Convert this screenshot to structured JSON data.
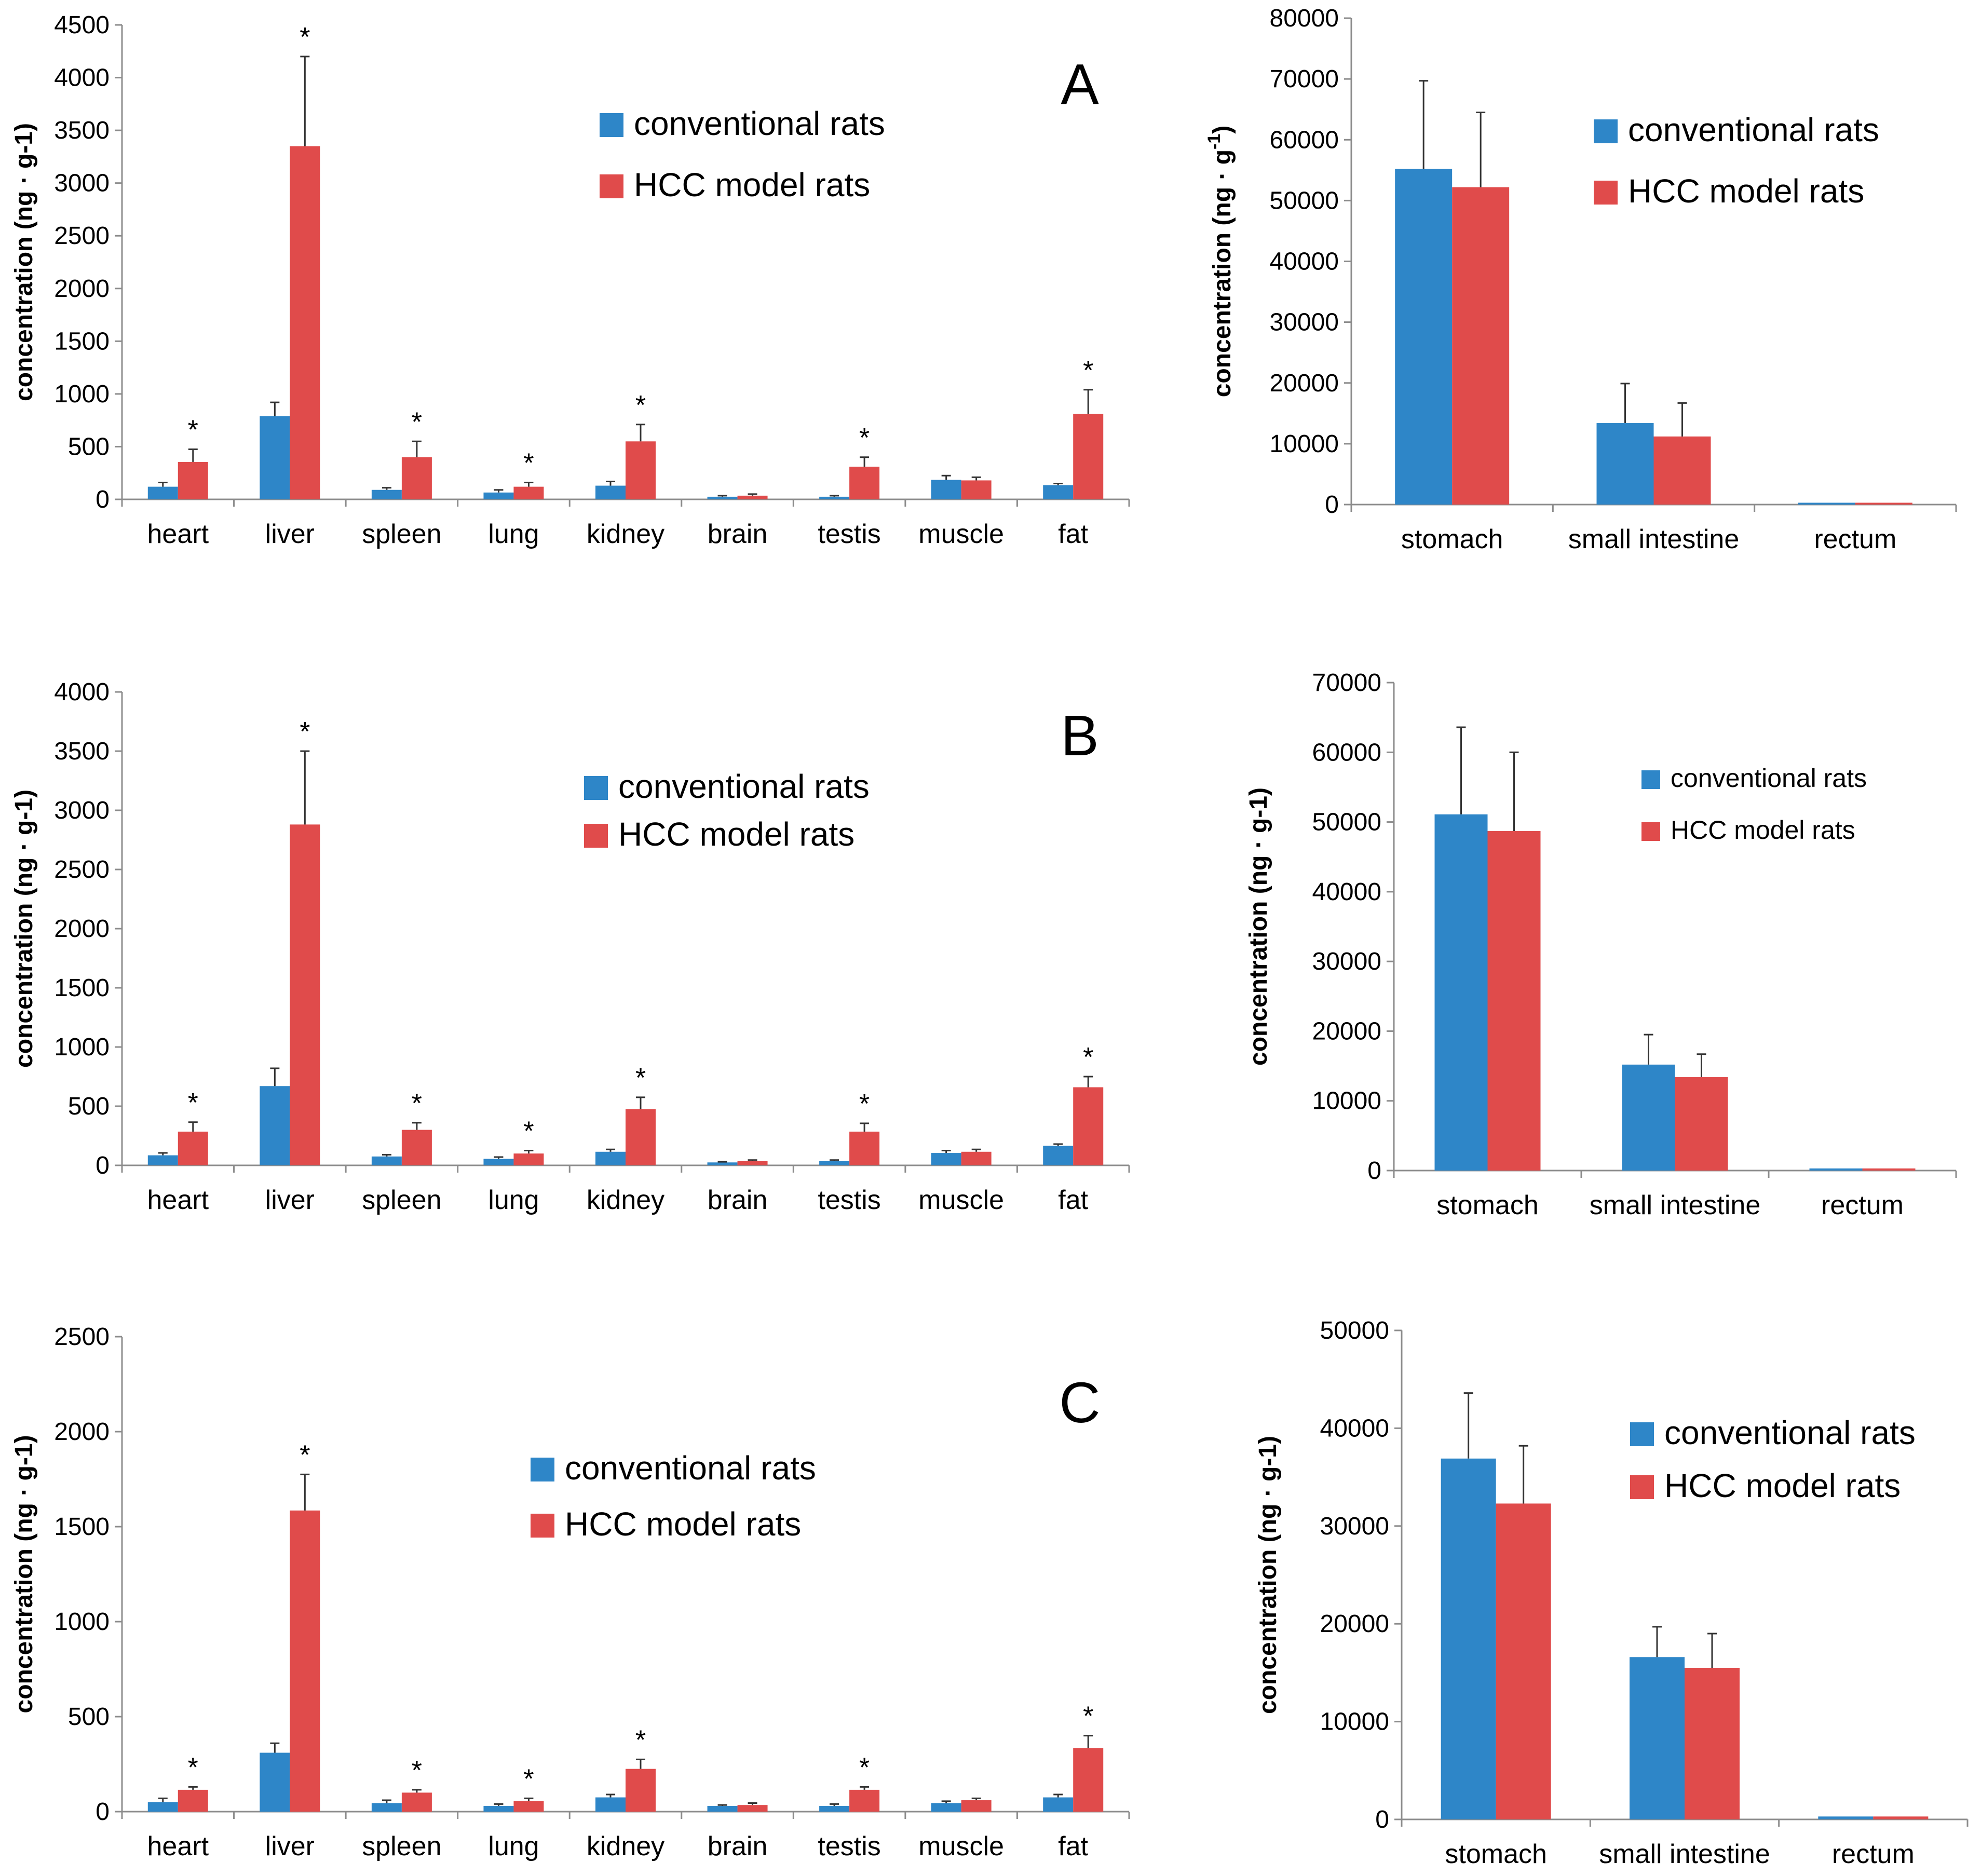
{
  "colors": {
    "conventional": "#2E86C8",
    "hcc": "#E04B4B",
    "axis": "#8c8c8c"
  },
  "ylabel": "concentration (ng · g-1)",
  "ylabel_gi_first": "concentration (ng · g",
  "ylabel_gi_first_sup": "-1",
  "ylabel_gi_first_tail": ")",
  "chart_data": [
    {
      "id": "A-organs",
      "type": "bar",
      "panel": "A",
      "categories": [
        "heart",
        "liver",
        "spleen",
        "lung",
        "kidney",
        "brain",
        "testis",
        "muscle",
        "fat"
      ],
      "series": [
        {
          "name": "conventional rats",
          "values": [
            120,
            790,
            90,
            65,
            130,
            25,
            25,
            185,
            135
          ],
          "errors": [
            40,
            130,
            20,
            25,
            40,
            10,
            10,
            40,
            15
          ]
        },
        {
          "name": "HCC model rats",
          "values": [
            355,
            3350,
            400,
            120,
            550,
            35,
            310,
            180,
            810
          ],
          "errors": [
            120,
            850,
            150,
            40,
            160,
            15,
            90,
            30,
            230
          ]
        }
      ],
      "significant": [
        true,
        true,
        true,
        true,
        true,
        false,
        true,
        false,
        true
      ],
      "ylim": [
        0,
        4500
      ],
      "yticks": [
        "0",
        "500",
        "1000",
        "1500",
        "2000",
        "2500",
        "3000",
        "3500",
        "4000",
        "4500"
      ],
      "ylabel": "concentration (ng · g-1)",
      "legend": [
        "conventional rats",
        "HCC model rats"
      ]
    },
    {
      "id": "A-gi",
      "type": "bar",
      "panel": "A",
      "categories": [
        "stomach",
        "small intestine",
        "rectum"
      ],
      "series": [
        {
          "name": "conventional rats",
          "values": [
            55200,
            13400,
            300
          ],
          "errors": [
            14500,
            6500,
            0
          ]
        },
        {
          "name": "HCC model rats",
          "values": [
            52200,
            11200,
            300
          ],
          "errors": [
            12300,
            5500,
            0
          ]
        }
      ],
      "ylim": [
        0,
        80000
      ],
      "yticks": [
        "0",
        "10000",
        "20000",
        "30000",
        "40000",
        "50000",
        "60000",
        "70000",
        "80000"
      ],
      "ylabel": "concentration (ng · g-1)",
      "legend": [
        "conventional rats",
        "HCC model rats"
      ]
    },
    {
      "id": "B-organs",
      "type": "bar",
      "panel": "B",
      "categories": [
        "heart",
        "liver",
        "spleen",
        "lung",
        "kidney",
        "brain",
        "testis",
        "muscle",
        "fat"
      ],
      "series": [
        {
          "name": "conventional rats",
          "values": [
            85,
            670,
            75,
            55,
            115,
            25,
            35,
            105,
            165
          ],
          "errors": [
            20,
            150,
            15,
            15,
            20,
            5,
            10,
            20,
            15
          ]
        },
        {
          "name": "HCC model rats",
          "values": [
            285,
            2880,
            300,
            100,
            475,
            35,
            285,
            115,
            660
          ],
          "errors": [
            80,
            620,
            60,
            25,
            100,
            10,
            70,
            20,
            90
          ]
        }
      ],
      "significant": [
        true,
        true,
        true,
        true,
        true,
        false,
        true,
        false,
        true
      ],
      "ylim": [
        0,
        4000
      ],
      "yticks": [
        "0",
        "500",
        "1000",
        "1500",
        "2000",
        "2500",
        "3000",
        "3500",
        "4000"
      ],
      "ylabel": "concentration (ng · g-1)",
      "legend": [
        "conventional rats",
        "HCC model rats"
      ]
    },
    {
      "id": "B-gi",
      "type": "bar",
      "panel": "B",
      "categories": [
        "stomach",
        "small intestine",
        "rectum"
      ],
      "series": [
        {
          "name": "conventional rats",
          "values": [
            51100,
            15200,
            300
          ],
          "errors": [
            12500,
            4300,
            0
          ]
        },
        {
          "name": "HCC model rats",
          "values": [
            48700,
            13400,
            300
          ],
          "errors": [
            11300,
            3300,
            0
          ]
        }
      ],
      "ylim": [
        0,
        70000
      ],
      "yticks": [
        "0",
        "10000",
        "20000",
        "30000",
        "40000",
        "50000",
        "60000",
        "70000"
      ],
      "ylabel": "concentration (ng · g-1)",
      "legend": [
        "conventional rats",
        "HCC model rats"
      ]
    },
    {
      "id": "C-organs",
      "type": "bar",
      "panel": "C",
      "categories": [
        "heart",
        "liver",
        "spleen",
        "lung",
        "kidney",
        "brain",
        "testis",
        "muscle",
        "fat"
      ],
      "series": [
        {
          "name": "conventional rats",
          "values": [
            50,
            310,
            45,
            30,
            75,
            30,
            30,
            45,
            75
          ],
          "errors": [
            20,
            50,
            15,
            10,
            15,
            5,
            10,
            10,
            15
          ]
        },
        {
          "name": "HCC model rats",
          "values": [
            115,
            1585,
            100,
            55,
            225,
            35,
            115,
            60,
            335
          ],
          "errors": [
            15,
            190,
            15,
            15,
            50,
            10,
            15,
            10,
            65
          ]
        }
      ],
      "significant": [
        true,
        true,
        true,
        true,
        true,
        false,
        true,
        false,
        true
      ],
      "ylim": [
        0,
        2500
      ],
      "yticks": [
        "0",
        "500",
        "1000",
        "1500",
        "2000",
        "2500"
      ],
      "ylabel": "concentration (ng · g-1)",
      "legend": [
        "conventional rats",
        "HCC model rats"
      ]
    },
    {
      "id": "C-gi",
      "type": "bar",
      "panel": "C",
      "categories": [
        "stomach",
        "small intestine",
        "rectum"
      ],
      "series": [
        {
          "name": "conventional rats",
          "values": [
            36900,
            16600,
            300
          ],
          "errors": [
            6700,
            3100,
            0
          ]
        },
        {
          "name": "HCC model rats",
          "values": [
            32300,
            15500,
            300
          ],
          "errors": [
            5900,
            3500,
            0
          ]
        }
      ],
      "ylim": [
        0,
        50000
      ],
      "yticks": [
        "0",
        "10000",
        "20000",
        "30000",
        "40000",
        "50000"
      ],
      "ylabel": "concentration (ng · g-1)",
      "legend": [
        "conventional rats",
        "HCC model rats"
      ]
    }
  ]
}
